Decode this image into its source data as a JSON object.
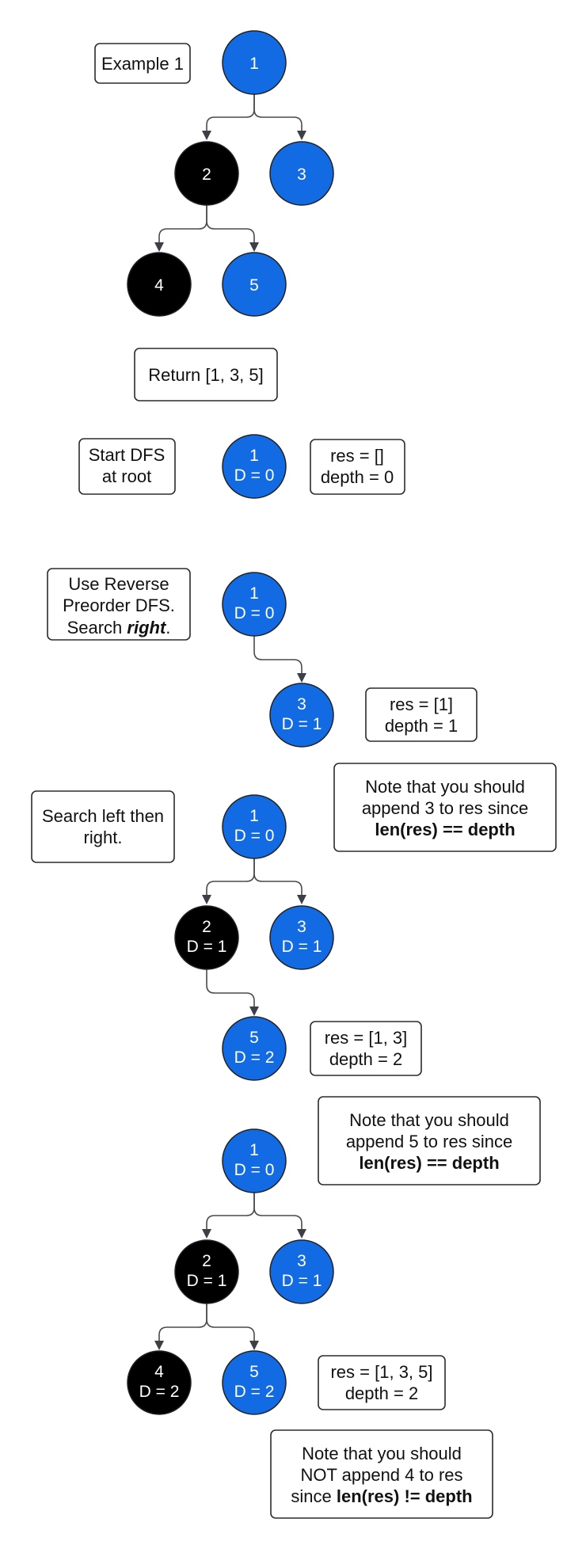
{
  "colors": {
    "blue": "#136be4",
    "black": "#000000",
    "node_text": "#ffffff"
  },
  "labels": {
    "example": "Example 1",
    "return": "Return [1, 3, 5]",
    "start_1": "Start DFS",
    "start_2": "at root",
    "use_1": "Use Reverse",
    "use_2": "Preorder DFS.",
    "use_3a": "Search ",
    "use_3b": "right",
    "use_3c": ".",
    "search_lr_1": "Search left then",
    "search_lr_2": "right."
  },
  "state": {
    "s1_res": "res = []",
    "s1_depth": "depth = 0",
    "s2_res": "res = [1]",
    "s2_depth": "depth = 1",
    "s3_res": "res = [1, 3]",
    "s3_depth": "depth = 2",
    "s4_res": "res = [1, 3, 5]",
    "s4_depth": "depth = 2"
  },
  "notes": {
    "n1_1": "Note that you should",
    "n1_2": "append 3 to res since",
    "n1_3": "len(res) == depth",
    "n2_1": "Note that you should",
    "n2_2": "append 5 to res since",
    "n2_3": "len(res) == depth",
    "n3_1": "Note that you should",
    "n3_2": "NOT append 4 to res",
    "n3_3a": "since ",
    "n3_3b": "len(res) != depth"
  },
  "nodes": {
    "t1_n1": "1",
    "t1_n2": "2",
    "t1_n3": "3",
    "t1_n4": "4",
    "t1_n5": "5",
    "t2_n1_v": "1",
    "t2_n1_d": "D = 0",
    "t3_n1_v": "1",
    "t3_n1_d": "D = 0",
    "t3_n3_v": "3",
    "t3_n3_d": "D = 1",
    "t4_n1_v": "1",
    "t4_n1_d": "D = 0",
    "t4_n2_v": "2",
    "t4_n2_d": "D = 1",
    "t4_n3_v": "3",
    "t4_n3_d": "D = 1",
    "t4_n5_v": "5",
    "t4_n5_d": "D = 2",
    "t5_n1_v": "1",
    "t5_n1_d": "D = 0",
    "t5_n2_v": "2",
    "t5_n2_d": "D = 1",
    "t5_n3_v": "3",
    "t5_n3_d": "D = 1",
    "t5_n4_v": "4",
    "t5_n4_d": "D = 2",
    "t5_n5_v": "5",
    "t5_n5_d": "D = 2"
  }
}
